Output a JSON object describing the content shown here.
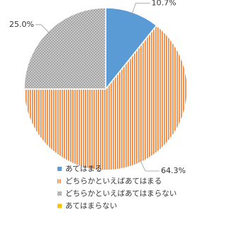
{
  "chart_data": {
    "type": "pie",
    "categories": [
      "あてはまる",
      "どちらかといえばあてはまる",
      "どちらかといえばあてはまらない",
      "あてはまらない"
    ],
    "values": [
      10.7,
      64.3,
      25.0,
      0
    ],
    "value_labels": [
      "10.7%",
      "64.3%",
      "25.0%",
      null
    ],
    "colors": [
      "#5b9bd5",
      "#ed7d31",
      "#a5a5a5",
      "#ffc000"
    ],
    "legend": "bottom"
  }
}
